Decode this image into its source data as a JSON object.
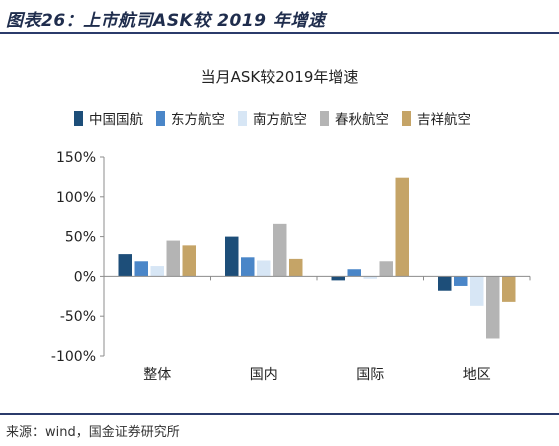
{
  "figure_title": "图表26：上市航司ASK较 2019 年增速",
  "source": "来源：wind，国金证券研究所",
  "colors": {
    "rule": "#2b3b6b",
    "axis": "#8c8c8c"
  },
  "chart_data": {
    "type": "bar",
    "title": "当月ASK较2019年增速",
    "xlabel": "",
    "ylabel": "",
    "categories": [
      "整体",
      "国内",
      "国际",
      "地区"
    ],
    "ylim": [
      -100,
      150
    ],
    "yticks": [
      -100,
      -50,
      0,
      50,
      100,
      150
    ],
    "ytick_labels": [
      "-100%",
      "-50%",
      "0%",
      "50%",
      "100%",
      "150%"
    ],
    "grid": false,
    "legend_position": "top",
    "series": [
      {
        "name": "中国国航",
        "color": "#1d4e79",
        "values": [
          28,
          50,
          -5,
          -18
        ]
      },
      {
        "name": "东方航空",
        "color": "#4a86c8",
        "values": [
          19,
          24,
          9,
          -12
        ]
      },
      {
        "name": "南方航空",
        "color": "#d7e6f5",
        "values": [
          13,
          20,
          -3,
          -37
        ]
      },
      {
        "name": "春秋航空",
        "color": "#b4b4b4",
        "values": [
          45,
          66,
          19,
          -78
        ]
      },
      {
        "name": "吉祥航空",
        "color": "#c5a467",
        "values": [
          39,
          22,
          124,
          -32
        ]
      }
    ]
  }
}
